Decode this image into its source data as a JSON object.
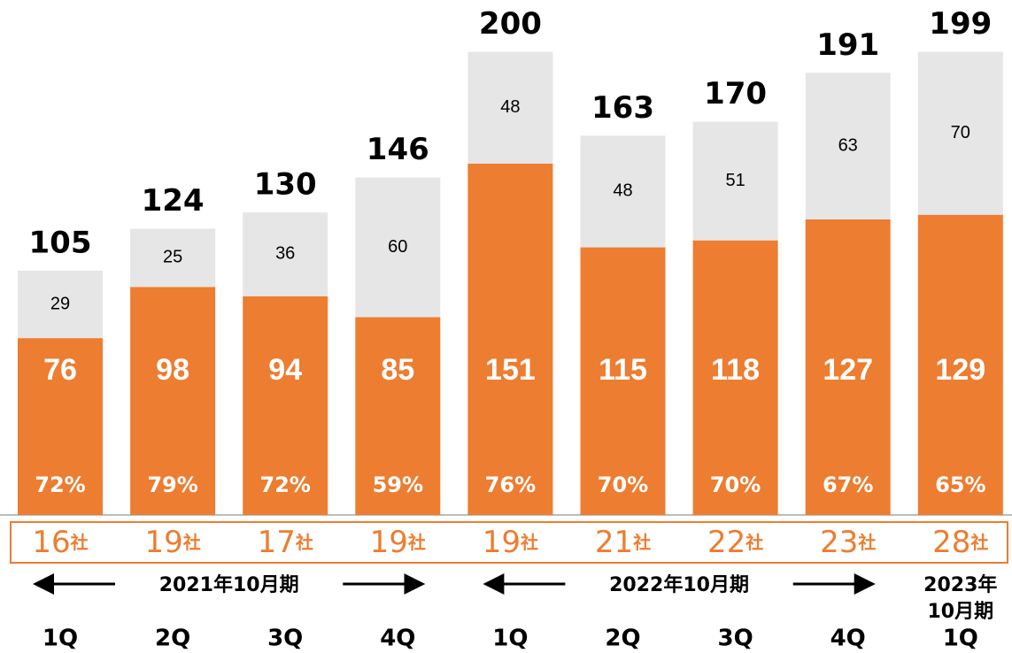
{
  "chart_data": {
    "type": "stacked_bar",
    "categories": [
      "1Q",
      "2Q",
      "3Q",
      "4Q",
      "1Q",
      "2Q",
      "3Q",
      "4Q",
      "1Q"
    ],
    "series": [
      {
        "color": "#ED7D31",
        "values": [
          76,
          98,
          94,
          85,
          151,
          115,
          118,
          127,
          129
        ]
      },
      {
        "color": "#E7E6E6",
        "values": [
          29,
          25,
          36,
          60,
          48,
          48,
          51,
          63,
          70
        ]
      }
    ],
    "totals": [
      105,
      124,
      130,
      146,
      200,
      163,
      170,
      191,
      199
    ],
    "ratio_labels": [
      "72%",
      "79%",
      "72%",
      "59%",
      "76%",
      "70%",
      "70%",
      "67%",
      "65%"
    ],
    "companies": [
      16,
      19,
      17,
      19,
      19,
      21,
      22,
      23,
      28
    ],
    "company_unit": "社",
    "periods": [
      {
        "lines": [
          "2021年10月期"
        ],
        "from": 0,
        "to": 3
      },
      {
        "lines": [
          "2022年10月期"
        ],
        "from": 4,
        "to": 7
      },
      {
        "lines": [
          "2023年",
          "10月期"
        ],
        "from": 8,
        "to": 8
      }
    ]
  }
}
